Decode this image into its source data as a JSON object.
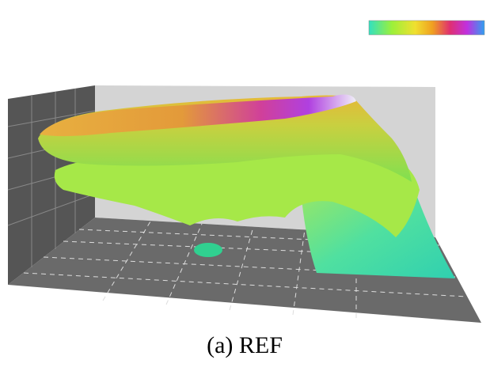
{
  "caption": "(a) REF"
}
